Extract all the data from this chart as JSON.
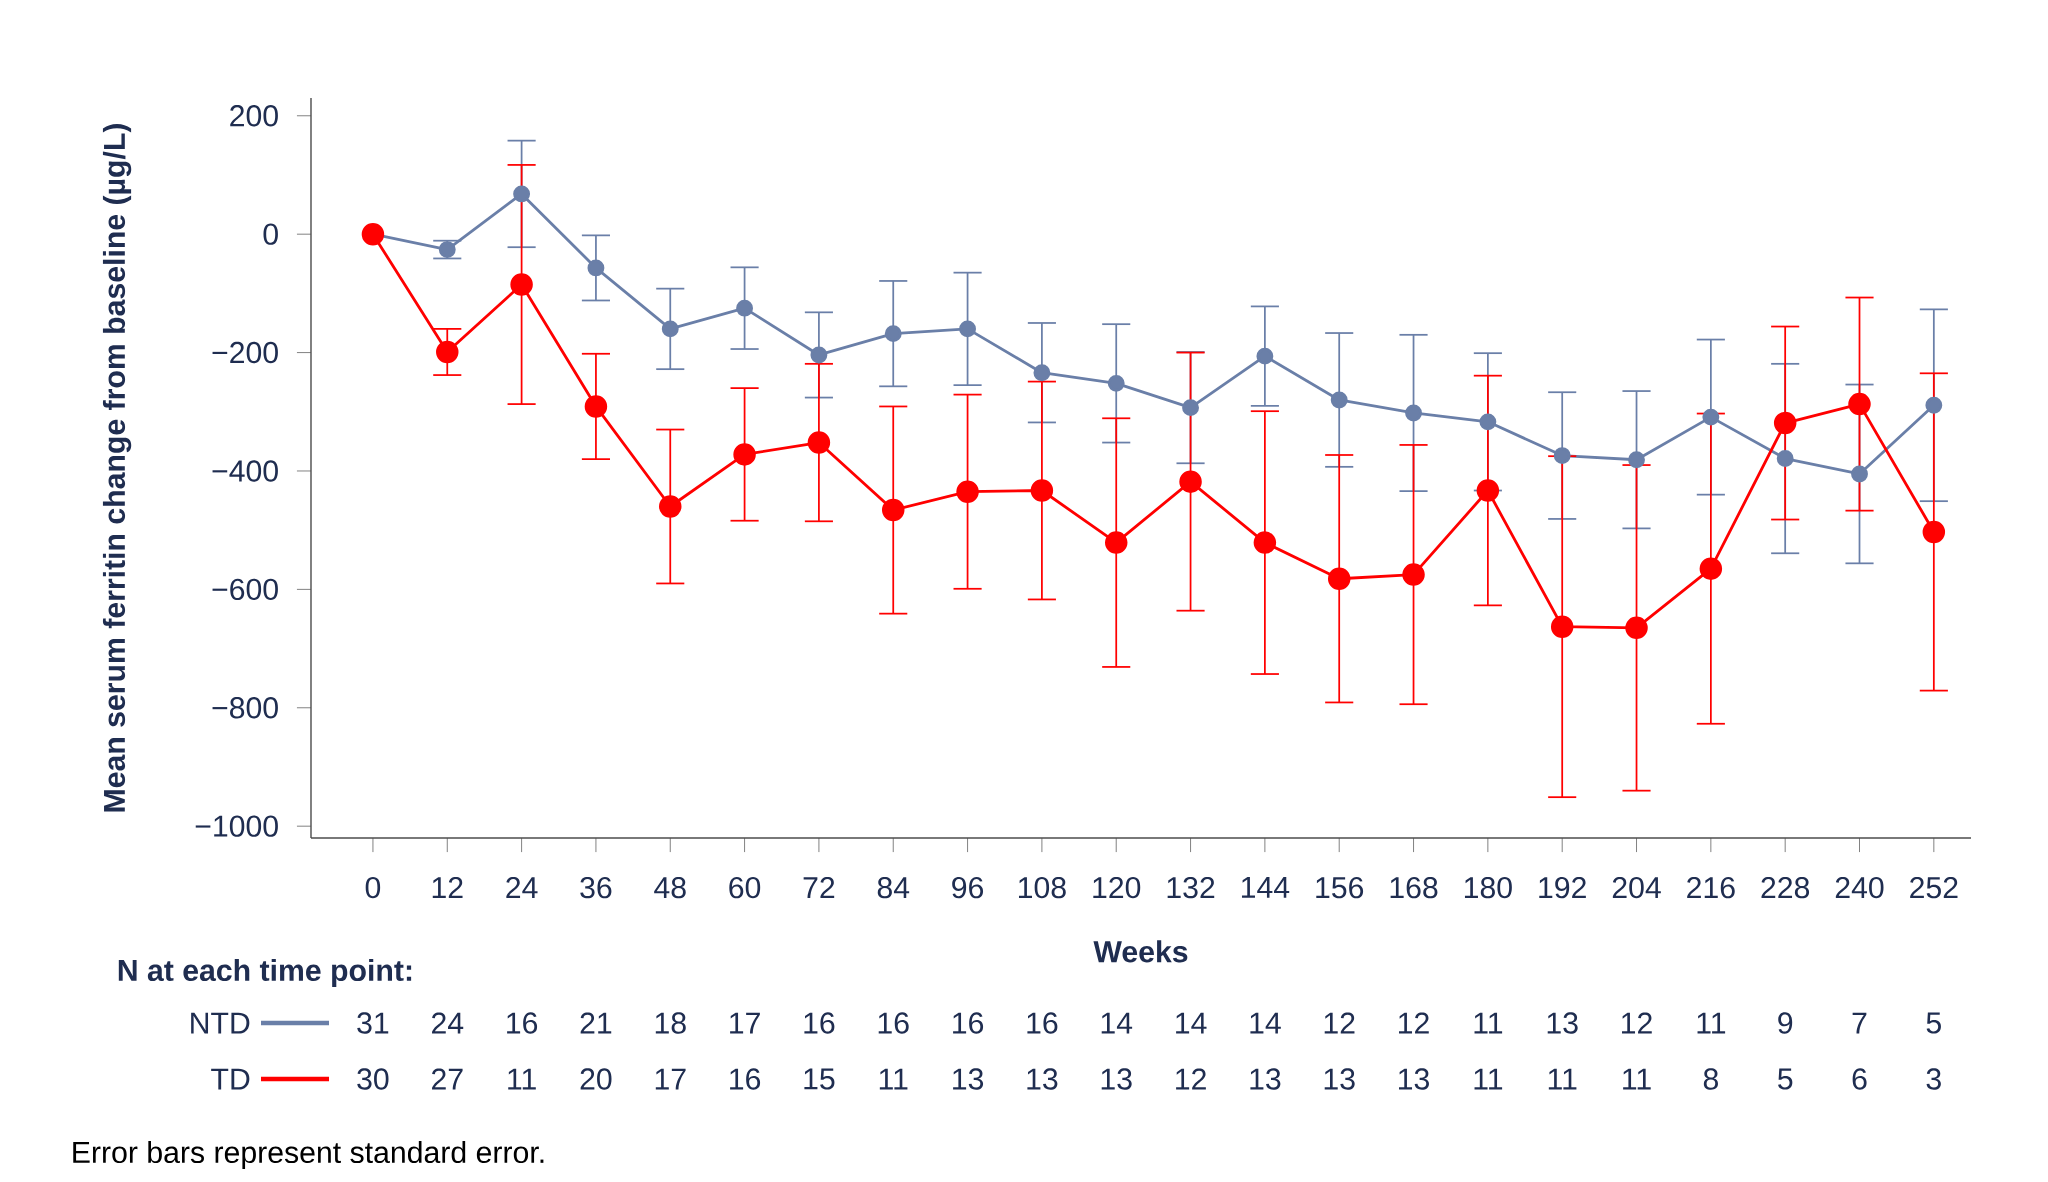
{
  "chart_data": {
    "type": "line",
    "xlabel": "Weeks",
    "ylabel": "Mean serum ferritin change from baseline (µg/L)",
    "x": [
      0,
      12,
      24,
      36,
      48,
      60,
      72,
      84,
      96,
      108,
      120,
      132,
      144,
      156,
      168,
      180,
      192,
      204,
      216,
      228,
      240,
      252
    ],
    "series": [
      {
        "name": "NTD",
        "color": "#6a7fa8",
        "values": [
          0,
          -26,
          68,
          -57,
          -160,
          -125,
          -204,
          -168,
          -160,
          -234,
          -252,
          -293,
          -206,
          -280,
          -302,
          -317,
          -374,
          -381,
          -309,
          -379,
          -405,
          -289
        ],
        "errors": [
          null,
          15,
          90,
          55,
          68,
          69,
          72,
          89,
          95,
          84,
          100,
          94,
          84,
          113,
          132,
          116,
          107,
          116,
          131,
          160,
          151,
          162
        ]
      },
      {
        "name": "TD",
        "color": "#ff0000",
        "values": [
          0,
          -199,
          -85,
          -291,
          -460,
          -372,
          -352,
          -466,
          -435,
          -433,
          -521,
          -418,
          -521,
          -582,
          -575,
          -433,
          -663,
          -665,
          -565,
          -319,
          -287,
          -503
        ],
        "errors": [
          null,
          39,
          202,
          89,
          130,
          112,
          133,
          175,
          164,
          184,
          210,
          218,
          222,
          209,
          219,
          194,
          288,
          275,
          262,
          163,
          180,
          268
        ]
      }
    ],
    "xlim": [
      -10,
      258
    ],
    "xticks": [
      0,
      12,
      24,
      36,
      48,
      60,
      72,
      84,
      96,
      108,
      120,
      132,
      144,
      156,
      168,
      180,
      192,
      204,
      216,
      228,
      240,
      252
    ],
    "ylim": [
      -1020,
      230
    ],
    "yticks": [
      {
        "value": -1000,
        "label": "−1000"
      },
      {
        "value": -800,
        "label": "−800"
      },
      {
        "value": -600,
        "label": "−600"
      },
      {
        "value": -400,
        "label": "−400"
      },
      {
        "value": -200,
        "label": "−200"
      },
      0,
      200
    ],
    "marker": "circle",
    "line_style": "solid",
    "legend": "bottom",
    "annotations": [
      "N at each time point:",
      "31",
      "24",
      "16",
      "21",
      "18",
      "17",
      "16",
      "16",
      "16",
      "16",
      "14",
      "14",
      "14",
      "12",
      "12",
      "11",
      "13",
      "12",
      "11",
      "9",
      "7",
      "5",
      "30",
      "27",
      "11",
      "20",
      "17",
      "16",
      "15",
      "11",
      "13",
      "13",
      "13",
      "12",
      "13",
      "13",
      "13",
      "11",
      "11",
      "11",
      "8",
      "5",
      "6",
      "3",
      "Error bars represent standard error."
    ]
  }
}
